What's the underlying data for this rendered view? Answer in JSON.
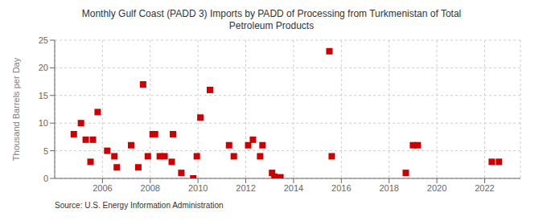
{
  "chart_data": {
    "type": "scatter",
    "title": "Monthly Gulf Coast (PADD 3) Imports by PADD of Processing from Turkmenistan of Total\nPetroleum Products",
    "ylabel": "Thousand Barrels per Day",
    "annotations": [
      "Source: U.S. Energy Information Administration"
    ],
    "color": "#cc0000",
    "marker": "square",
    "grid": true,
    "xlim": [
      2004.0,
      2023.5
    ],
    "ylim": [
      0,
      25
    ],
    "xticks": [
      2006,
      2008,
      2010,
      2012,
      2014,
      2016,
      2018,
      2020,
      2022
    ],
    "yticks": [
      0,
      5,
      10,
      15,
      20,
      25
    ],
    "x": [
      2004.8,
      2005.1,
      2005.3,
      2005.5,
      2005.6,
      2005.8,
      2006.2,
      2006.5,
      2006.6,
      2007.2,
      2007.5,
      2007.7,
      2007.9,
      2008.1,
      2008.2,
      2008.4,
      2008.6,
      2008.9,
      2008.95,
      2009.3,
      2009.8,
      2009.95,
      2010.1,
      2010.5,
      2011.3,
      2011.5,
      2012.1,
      2012.3,
      2012.6,
      2012.7,
      2013.1,
      2013.2,
      2013.35,
      2013.45,
      2015.5,
      2015.6,
      2018.7,
      2019.0,
      2019.2,
      2022.3,
      2022.6
    ],
    "values": [
      8,
      10,
      7,
      3,
      7,
      12,
      5,
      4,
      2,
      6,
      2,
      17,
      4,
      8,
      8,
      4,
      4,
      3,
      8,
      1,
      0,
      4,
      11,
      16,
      6,
      4,
      6,
      7,
      4,
      6,
      1,
      0.3,
      0,
      0.2,
      23,
      4,
      1,
      6,
      6,
      3,
      3
    ]
  }
}
